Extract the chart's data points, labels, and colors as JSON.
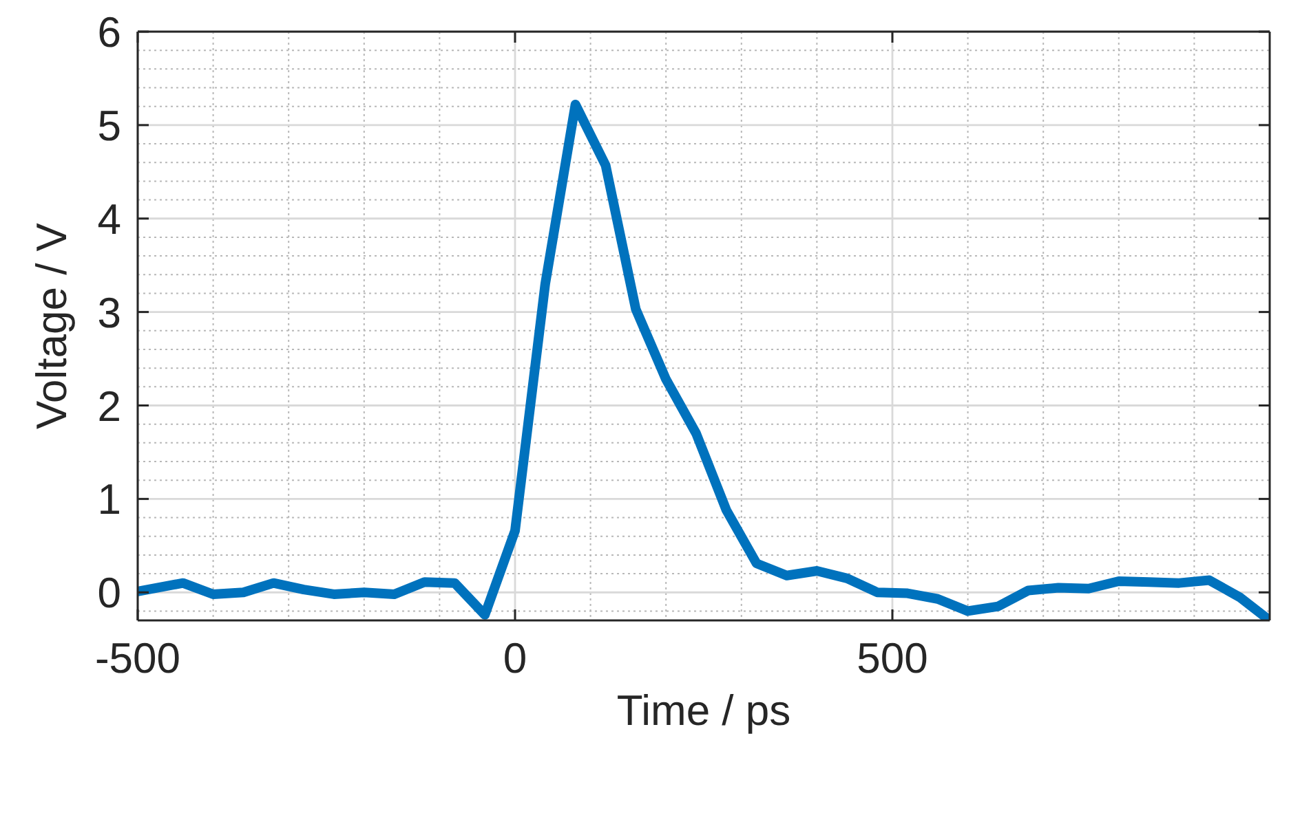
{
  "chart_data": {
    "type": "line",
    "xlabel": "Time / ps",
    "ylabel": "Voltage / V",
    "x": [
      -500,
      -440,
      -400,
      -360,
      -320,
      -280,
      -240,
      -200,
      -160,
      -120,
      -80,
      -40,
      0,
      40,
      80,
      120,
      160,
      200,
      240,
      280,
      320,
      360,
      400,
      440,
      480,
      520,
      560,
      600,
      640,
      680,
      720,
      760,
      800,
      840,
      880,
      920,
      960,
      1000
    ],
    "series": [
      {
        "color": "#0072bd",
        "values": [
          0.01,
          0.1,
          -0.02,
          0,
          0.1,
          0.03,
          -0.02,
          0,
          -0.02,
          0.11,
          0.1,
          -0.24,
          0.66,
          3.3,
          5.22,
          4.57,
          3.03,
          2.28,
          1.7,
          0.88,
          0.31,
          0.18,
          0.23,
          0.15,
          0,
          -0.01,
          -0.07,
          -0.2,
          -0.15,
          0.02,
          0.05,
          0.04,
          0.12,
          0.11,
          0.1,
          0.13,
          -0.05,
          -0.3
        ]
      }
    ],
    "xlim": [
      -500,
      1000
    ],
    "ylim": [
      -0.3,
      6
    ],
    "xticks": [
      -500,
      {
        "value": -400,
        "label": null
      },
      {
        "value": -300,
        "label": null
      },
      {
        "value": -200,
        "label": null
      },
      {
        "value": -100,
        "label": null
      },
      0,
      {
        "value": 100,
        "label": null
      },
      {
        "value": 200,
        "label": null
      },
      {
        "value": 300,
        "label": null
      },
      {
        "value": 400,
        "label": null
      },
      500,
      {
        "value": 600,
        "label": null
      },
      {
        "value": 700,
        "label": null
      },
      {
        "value": 800,
        "label": null
      },
      {
        "value": 900,
        "label": null
      }
    ],
    "yticks": [
      {
        "value": -0.2,
        "label": null
      },
      0,
      {
        "value": 0.2,
        "label": null
      },
      {
        "value": 0.4,
        "label": null
      },
      {
        "value": 0.6,
        "label": null
      },
      {
        "value": 0.8,
        "label": null
      },
      1,
      {
        "value": 1.2,
        "label": null
      },
      {
        "value": 1.4,
        "label": null
      },
      {
        "value": 1.6,
        "label": null
      },
      {
        "value": 1.8,
        "label": null
      },
      2,
      {
        "value": 2.2,
        "label": null
      },
      {
        "value": 2.4,
        "label": null
      },
      {
        "value": 2.6,
        "label": null
      },
      {
        "value": 2.8,
        "label": null
      },
      3,
      {
        "value": 3.2,
        "label": null
      },
      {
        "value": 3.4,
        "label": null
      },
      {
        "value": 3.6,
        "label": null
      },
      {
        "value": 3.8,
        "label": null
      },
      4,
      {
        "value": 4.2,
        "label": null
      },
      {
        "value": 4.4,
        "label": null
      },
      {
        "value": 4.6,
        "label": null
      },
      {
        "value": 4.8,
        "label": null
      },
      5,
      {
        "value": 5.2,
        "label": null
      },
      {
        "value": 5.4,
        "label": null
      },
      {
        "value": 5.6,
        "label": null
      },
      {
        "value": 5.8,
        "label": null
      },
      6
    ],
    "grid": true,
    "marker": "none",
    "line_style": "solid"
  }
}
